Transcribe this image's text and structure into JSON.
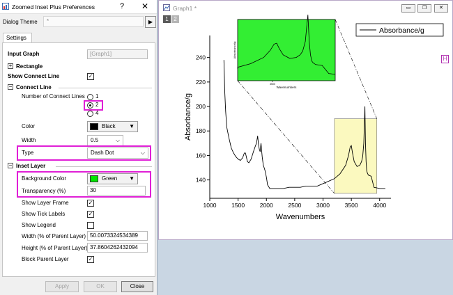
{
  "dialog": {
    "title": "Zoomed Inset Plus Preferences",
    "help_glyph": "?",
    "close_glyph": "✕",
    "theme_label": "Dialog Theme",
    "theme_value": "*",
    "theme_arrow": "▶",
    "tab_label": "Settings",
    "input_graph_label": "Input Graph",
    "input_graph_value": "[Graph1]",
    "rectangle_label": "Rectangle",
    "show_connect_line_label": "Show Connect Line",
    "connect_line_label": "Connect Line",
    "num_connect_lines_label": "Number of Connect Lines",
    "radio_options": [
      "1",
      "2",
      "4"
    ],
    "radio_selected": "2",
    "color_label": "Color",
    "color_value": "Black",
    "color_hex": "#000000",
    "width_label": "Width",
    "width_value": "0.5",
    "type_label": "Type",
    "type_value": "Dash Dot",
    "inset_layer_label": "Inset Layer",
    "bg_color_label": "Background Color",
    "bg_color_value": "Green",
    "bg_color_hex": "#00e400",
    "transparency_label": "Transparency (%)",
    "transparency_value": "30",
    "show_layer_frame_label": "Show Layer Frame",
    "show_tick_labels_label": "Show Tick Labels",
    "show_legend_label": "Show Legend",
    "width_pct_label": "Width (% of Parent Layer)",
    "width_pct_value": "50.0073324534389",
    "height_pct_label": "Height (% of Parent Layer)",
    "height_pct_value": "37.8604262432094",
    "block_parent_label": "Block Parent Layer",
    "check_glyph": "✓",
    "plus_glyph": "+",
    "minus_glyph": "−",
    "dropdown_glyph": "▼",
    "chevron_glyph": "⌵",
    "buttons": {
      "apply": "Apply",
      "ok": "OK",
      "close": "Close"
    }
  },
  "graph_window": {
    "title": "Graph1 *",
    "layer_tabs": [
      "1",
      "2"
    ],
    "h_marker": "H",
    "min_glyph": "▭",
    "restore_glyph": "❐",
    "close_glyph": "✕"
  },
  "chart_data": {
    "type": "line",
    "xlabel": "Wavenumbers",
    "ylabel": "Absorbance/g",
    "xlim": [
      1000,
      4200
    ],
    "ylim": [
      125,
      258
    ],
    "xticks": [
      1000,
      1500,
      2000,
      2500,
      3000,
      3500,
      4000
    ],
    "yticks": [
      140,
      160,
      180,
      200,
      220,
      240
    ],
    "legend_label": "Absorbance/g",
    "legend_position": "top-right",
    "zoom_region": {
      "x": [
        3200,
        3950
      ],
      "y": [
        129,
        190
      ]
    },
    "inset": {
      "xlabel": "Wavenumbers",
      "ylabel": "Absorbance/g",
      "xtick_label": "3500",
      "background": "#33ee33"
    },
    "series": [
      {
        "x": [
          1250,
          1265,
          1280,
          1300,
          1340,
          1380,
          1420,
          1460,
          1500,
          1540,
          1580,
          1610,
          1630,
          1650,
          1665,
          1690,
          1730,
          1770,
          1800,
          1825,
          1845,
          1860,
          1875,
          1890,
          1905,
          1925,
          1945,
          1960,
          1980,
          2000,
          2020,
          2060,
          2100,
          2200,
          2300,
          2400,
          2500,
          2600,
          2700,
          2800,
          2900,
          3000,
          3100,
          3200,
          3300,
          3400,
          3450,
          3480,
          3500,
          3520,
          3550,
          3600,
          3650,
          3680,
          3700,
          3720,
          3730,
          3740,
          3750,
          3760,
          3770,
          3780,
          3800,
          3850,
          3900,
          4000,
          4100
        ],
        "y": [
          238,
          212,
          196,
          183,
          174,
          166,
          162,
          159,
          157,
          156,
          158,
          162,
          162,
          158,
          155,
          154,
          157,
          163,
          167,
          170,
          176,
          169,
          165,
          163,
          170,
          159,
          152,
          150,
          147,
          142,
          136,
          133,
          133,
          133,
          133,
          134,
          134,
          134,
          135,
          135,
          135,
          137,
          139,
          141,
          145,
          152,
          160,
          167,
          168,
          162,
          155,
          151,
          152,
          155,
          159,
          170,
          185,
          200,
          170,
          155,
          148,
          146,
          144,
          143,
          134,
          133,
          133
        ]
      }
    ]
  }
}
